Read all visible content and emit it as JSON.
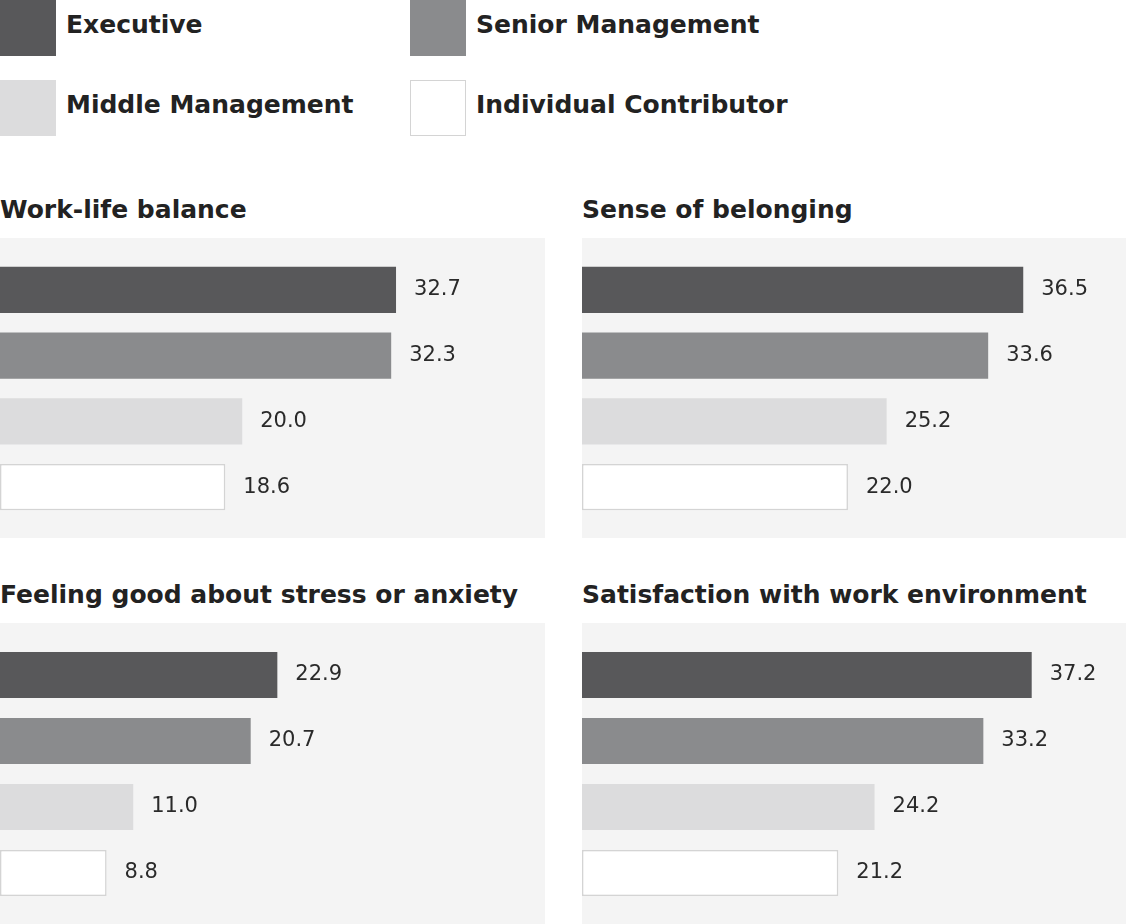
{
  "chart_data": [
    {
      "type": "bar",
      "title": "Work-life balance",
      "categories": [
        "Executive",
        "Senior Management",
        "Middle Management",
        "Individual Contributor"
      ],
      "values": [
        32.7,
        32.3,
        20.0,
        18.6
      ],
      "value_labels": [
        "32.7",
        "32.3",
        "20.0",
        "18.6"
      ],
      "colors": [
        "#58585a",
        "#8a8b8d",
        "#dcdcdd",
        "#ffffff"
      ],
      "orientation": "horizontal",
      "xlim": [
        0,
        45
      ],
      "grid": false,
      "data_labels": true,
      "tick_labels": false,
      "legend": "top-left"
    },
    {
      "type": "bar",
      "title": "Sense of belonging",
      "categories": [
        "Executive",
        "Senior Management",
        "Middle Management",
        "Individual Contributor"
      ],
      "values": [
        36.5,
        33.6,
        25.2,
        22.0
      ],
      "value_labels": [
        "36.5",
        "33.6",
        "25.2",
        "22.0"
      ],
      "colors": [
        "#58585a",
        "#8a8b8d",
        "#dcdcdd",
        "#ffffff"
      ],
      "orientation": "horizontal",
      "xlim": [
        0,
        45
      ],
      "grid": false,
      "data_labels": true,
      "tick_labels": false
    },
    {
      "type": "bar",
      "title": "Feeling good about stress or anxiety",
      "categories": [
        "Executive",
        "Senior Management",
        "Middle Management",
        "Individual Contributor"
      ],
      "values": [
        22.9,
        20.7,
        11.0,
        8.8
      ],
      "value_labels": [
        "22.9",
        "20.7",
        "11.0",
        "8.8"
      ],
      "colors": [
        "#58585a",
        "#8a8b8d",
        "#dcdcdd",
        "#ffffff"
      ],
      "orientation": "horizontal",
      "xlim": [
        0,
        45
      ],
      "grid": false,
      "data_labels": true,
      "tick_labels": false
    },
    {
      "type": "bar",
      "title": "Satisfaction with work environment",
      "categories": [
        "Executive",
        "Senior Management",
        "Middle Management",
        "Individual Contributor"
      ],
      "values": [
        37.2,
        33.2,
        24.2,
        21.2
      ],
      "value_labels": [
        "37.2",
        "33.2",
        "24.2",
        "21.2"
      ],
      "colors": [
        "#58585a",
        "#8a8b8d",
        "#dcdcdd",
        "#ffffff"
      ],
      "orientation": "horizontal",
      "xlim": [
        0,
        45
      ],
      "grid": false,
      "data_labels": true,
      "tick_labels": false
    }
  ]
}
